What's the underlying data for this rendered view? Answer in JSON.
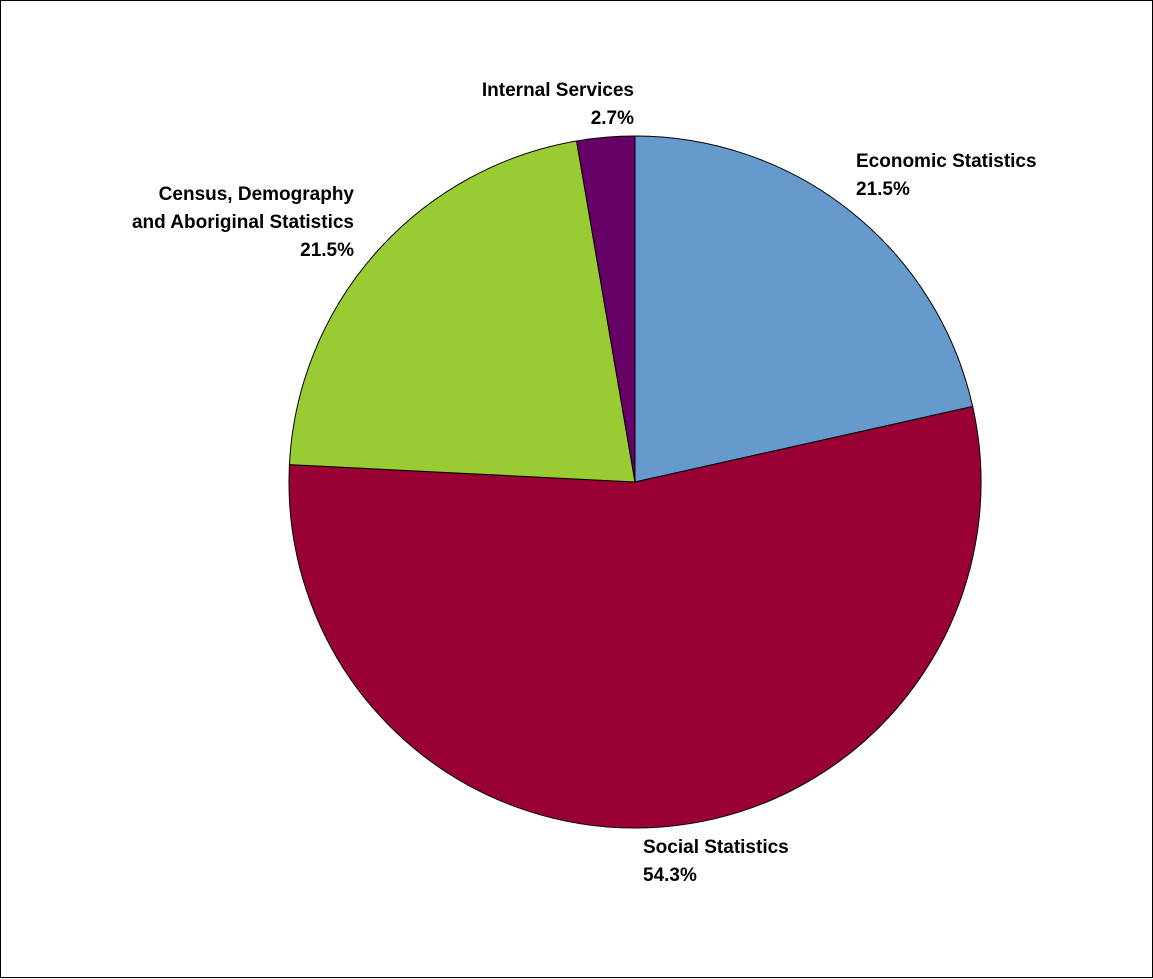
{
  "chart_data": {
    "type": "pie",
    "title": "",
    "slices": [
      {
        "label_lines": [
          "Economic Statistics"
        ],
        "value": 21.5,
        "value_label": "21.5%",
        "color": "#6699CC"
      },
      {
        "label_lines": [
          "Social Statistics"
        ],
        "value": 54.3,
        "value_label": "54.3%",
        "color": "#990033"
      },
      {
        "label_lines": [
          "Census, Demography",
          "and Aboriginal Statistics"
        ],
        "value": 21.5,
        "value_label": "21.5%",
        "color": "#99CC33"
      },
      {
        "label_lines": [
          "Internal Services"
        ],
        "value": 2.7,
        "value_label": "2.7%",
        "color": "#660066"
      }
    ],
    "start_angle": "12 o'clock",
    "direction": "clockwise",
    "legend": "none"
  }
}
